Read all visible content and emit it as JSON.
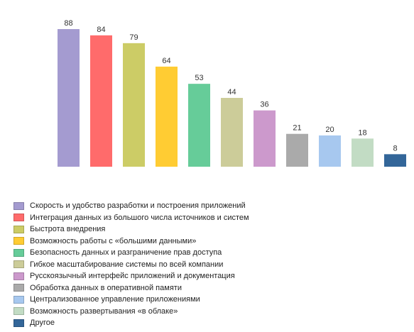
{
  "chart_data": {
    "type": "bar",
    "categories": [
      "Скорость и удобство разработки и построения приложений",
      "Интеграция данных из большого числа источников и систем",
      "Быстрота внедрения",
      "Возможность работы с «большими данными»",
      "Безопасность данных и разграничение прав доступа",
      "Гибкое масштабирование системы по всей компании",
      "Русскоязычный интерфейс приложений и документация",
      "Обработка данных в оперативной памяти",
      "Централизованное управление приложениями",
      "Возможность развертывания «в облаке»",
      "Другое"
    ],
    "values": [
      88,
      84,
      79,
      64,
      53,
      44,
      36,
      21,
      20,
      18,
      8
    ],
    "colors": [
      "#a49bd0",
      "#ff6b6b",
      "#cccc66",
      "#ffcc33",
      "#66cc99",
      "#cccc99",
      "#cc99cc",
      "#aaaaaa",
      "#a7c8ef",
      "#c2dcc4",
      "#336699"
    ],
    "ylim": [
      0,
      88
    ],
    "data_labels": true,
    "legend_position": "bottom",
    "grid": false
  }
}
